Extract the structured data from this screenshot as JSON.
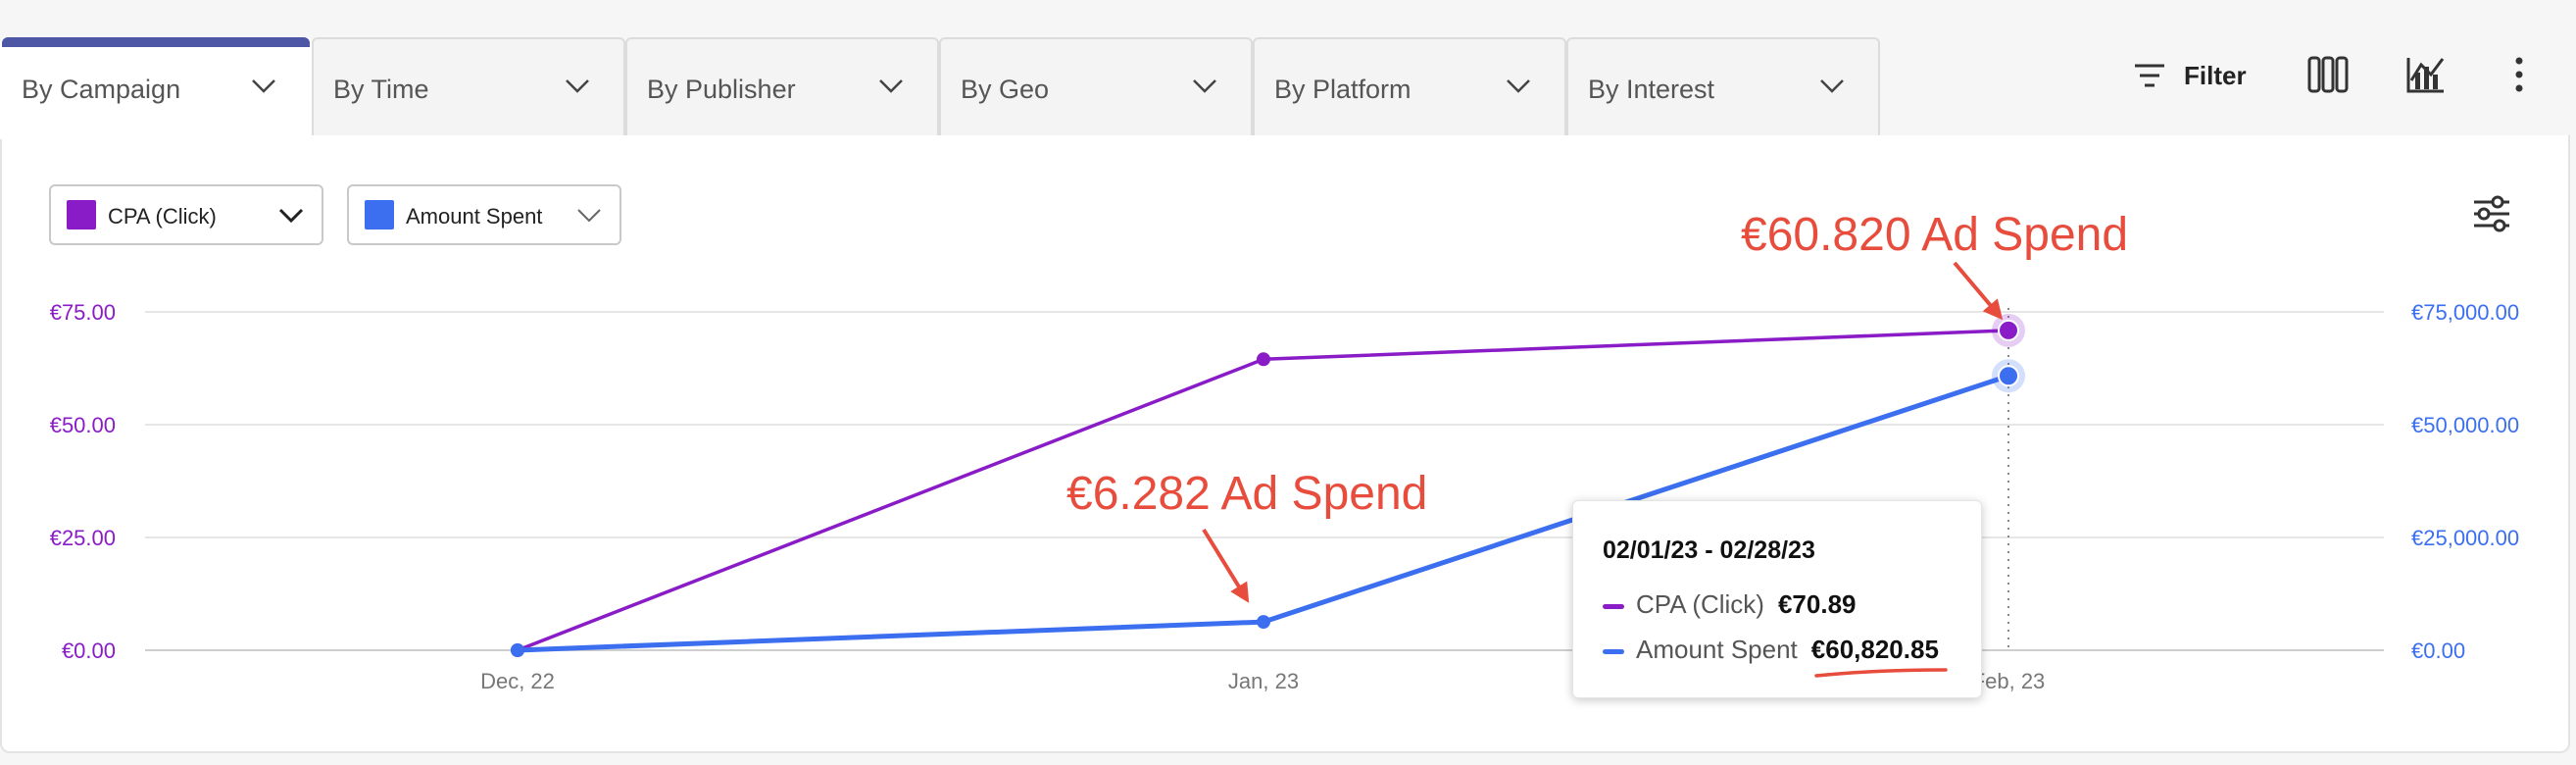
{
  "tabs": [
    {
      "label": "By Campaign",
      "active": true
    },
    {
      "label": "By Time",
      "active": false
    },
    {
      "label": "By Publisher",
      "active": false
    },
    {
      "label": "By Geo",
      "active": false
    },
    {
      "label": "By Platform",
      "active": false
    },
    {
      "label": "By Interest",
      "active": false
    }
  ],
  "toolbar": {
    "filter_label": "Filter",
    "icons": [
      "filter-lines-icon",
      "columns-icon",
      "chart-toggle-icon",
      "more-vertical-icon"
    ]
  },
  "selectors": [
    {
      "label": "CPA (Click)",
      "color": "#8a1cc7"
    },
    {
      "label": "Amount Spent",
      "color": "#3b6ff0"
    }
  ],
  "colors": {
    "cpa": "#8a1cc7",
    "spent": "#3b6ff0",
    "annotation": "#e74c3c",
    "active_tab": "#4e57a6"
  },
  "chart_data": {
    "type": "line",
    "categories": [
      "Dec, 22",
      "Jan, 23",
      "Feb, 23"
    ],
    "series": [
      {
        "name": "CPA (Click)",
        "axis": "left",
        "color": "#8a1cc7",
        "values": [
          0,
          64.5,
          70.89
        ]
      },
      {
        "name": "Amount Spent",
        "axis": "right",
        "color": "#3b6ff0",
        "values": [
          0,
          6282,
          60820.85
        ]
      }
    ],
    "y_left": {
      "ticks": [
        "€0.00",
        "€25.00",
        "€50.00",
        "€75.00"
      ],
      "min": 0,
      "max": 75
    },
    "y_right": {
      "ticks": [
        "€0.00",
        "€25,000.00",
        "€50,000.00",
        "€75,000.00"
      ],
      "min": 0,
      "max": 75000
    },
    "grid": true
  },
  "tooltip": {
    "title": "02/01/23 - 02/28/23",
    "rows": [
      {
        "label": "CPA (Click)",
        "value": "€70.89"
      },
      {
        "label": "Amount Spent",
        "value": "€60,820.85"
      }
    ]
  },
  "annotations": [
    {
      "text": "€60.820 Ad Spend"
    },
    {
      "text": "€6.282 Ad Spend"
    }
  ]
}
